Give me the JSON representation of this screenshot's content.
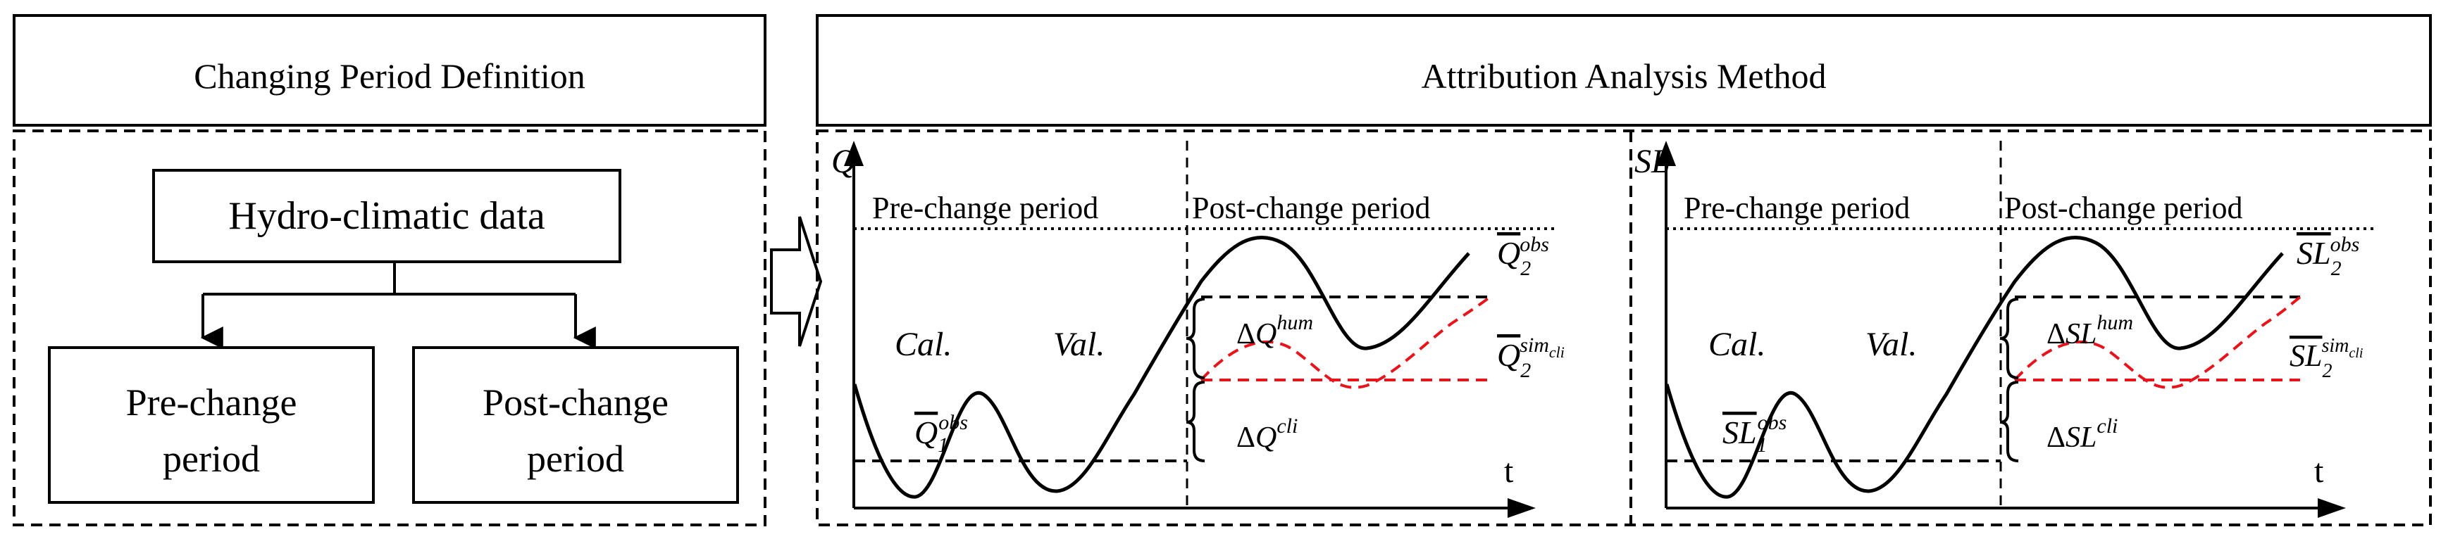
{
  "left": {
    "header": "Changing Period Definition",
    "top_box": "Hydro-climatic data",
    "box_pre": [
      "Pre-change",
      "period"
    ],
    "box_post": [
      "Post-change",
      "period"
    ]
  },
  "right": {
    "header": "Attribution Analysis Method"
  },
  "panel_q": {
    "axis_y": "Q",
    "axis_x": "t",
    "pre": "Pre-change period",
    "post": "Post-change period",
    "cal": "Cal.",
    "val": "Val.",
    "obs2": {
      "base": "Q",
      "sub": "2",
      "sup": "obs"
    },
    "sim2": {
      "base": "Q",
      "sub": "2",
      "sup": "sim",
      "supsub": "cli"
    },
    "obs1": {
      "base": "Q",
      "sub": "1",
      "sup": "obs"
    },
    "hum": {
      "delta": "Δ",
      "base": "Q",
      "sup": "hum"
    },
    "cli": {
      "delta": "Δ",
      "base": "Q",
      "sup": "cli"
    }
  },
  "panel_sl": {
    "axis_y": "SL",
    "axis_x": "t",
    "pre": "Pre-change period",
    "post": "Post-change period",
    "cal": "Cal.",
    "val": "Val.",
    "obs2": {
      "base": "SL",
      "sub": "2",
      "sup": "obs"
    },
    "sim2": {
      "base": "SL",
      "sub": "2",
      "sup": "sim",
      "supsub": "cli"
    },
    "obs1": {
      "base": "SL",
      "sub": "1",
      "sup": "obs"
    },
    "hum": {
      "delta": "Δ",
      "base": "SL",
      "sup": "hum"
    },
    "cli": {
      "delta": "Δ",
      "base": "SL",
      "sup": "cli"
    }
  },
  "colors": {
    "line": "#000000",
    "sim": "#e8141b"
  }
}
